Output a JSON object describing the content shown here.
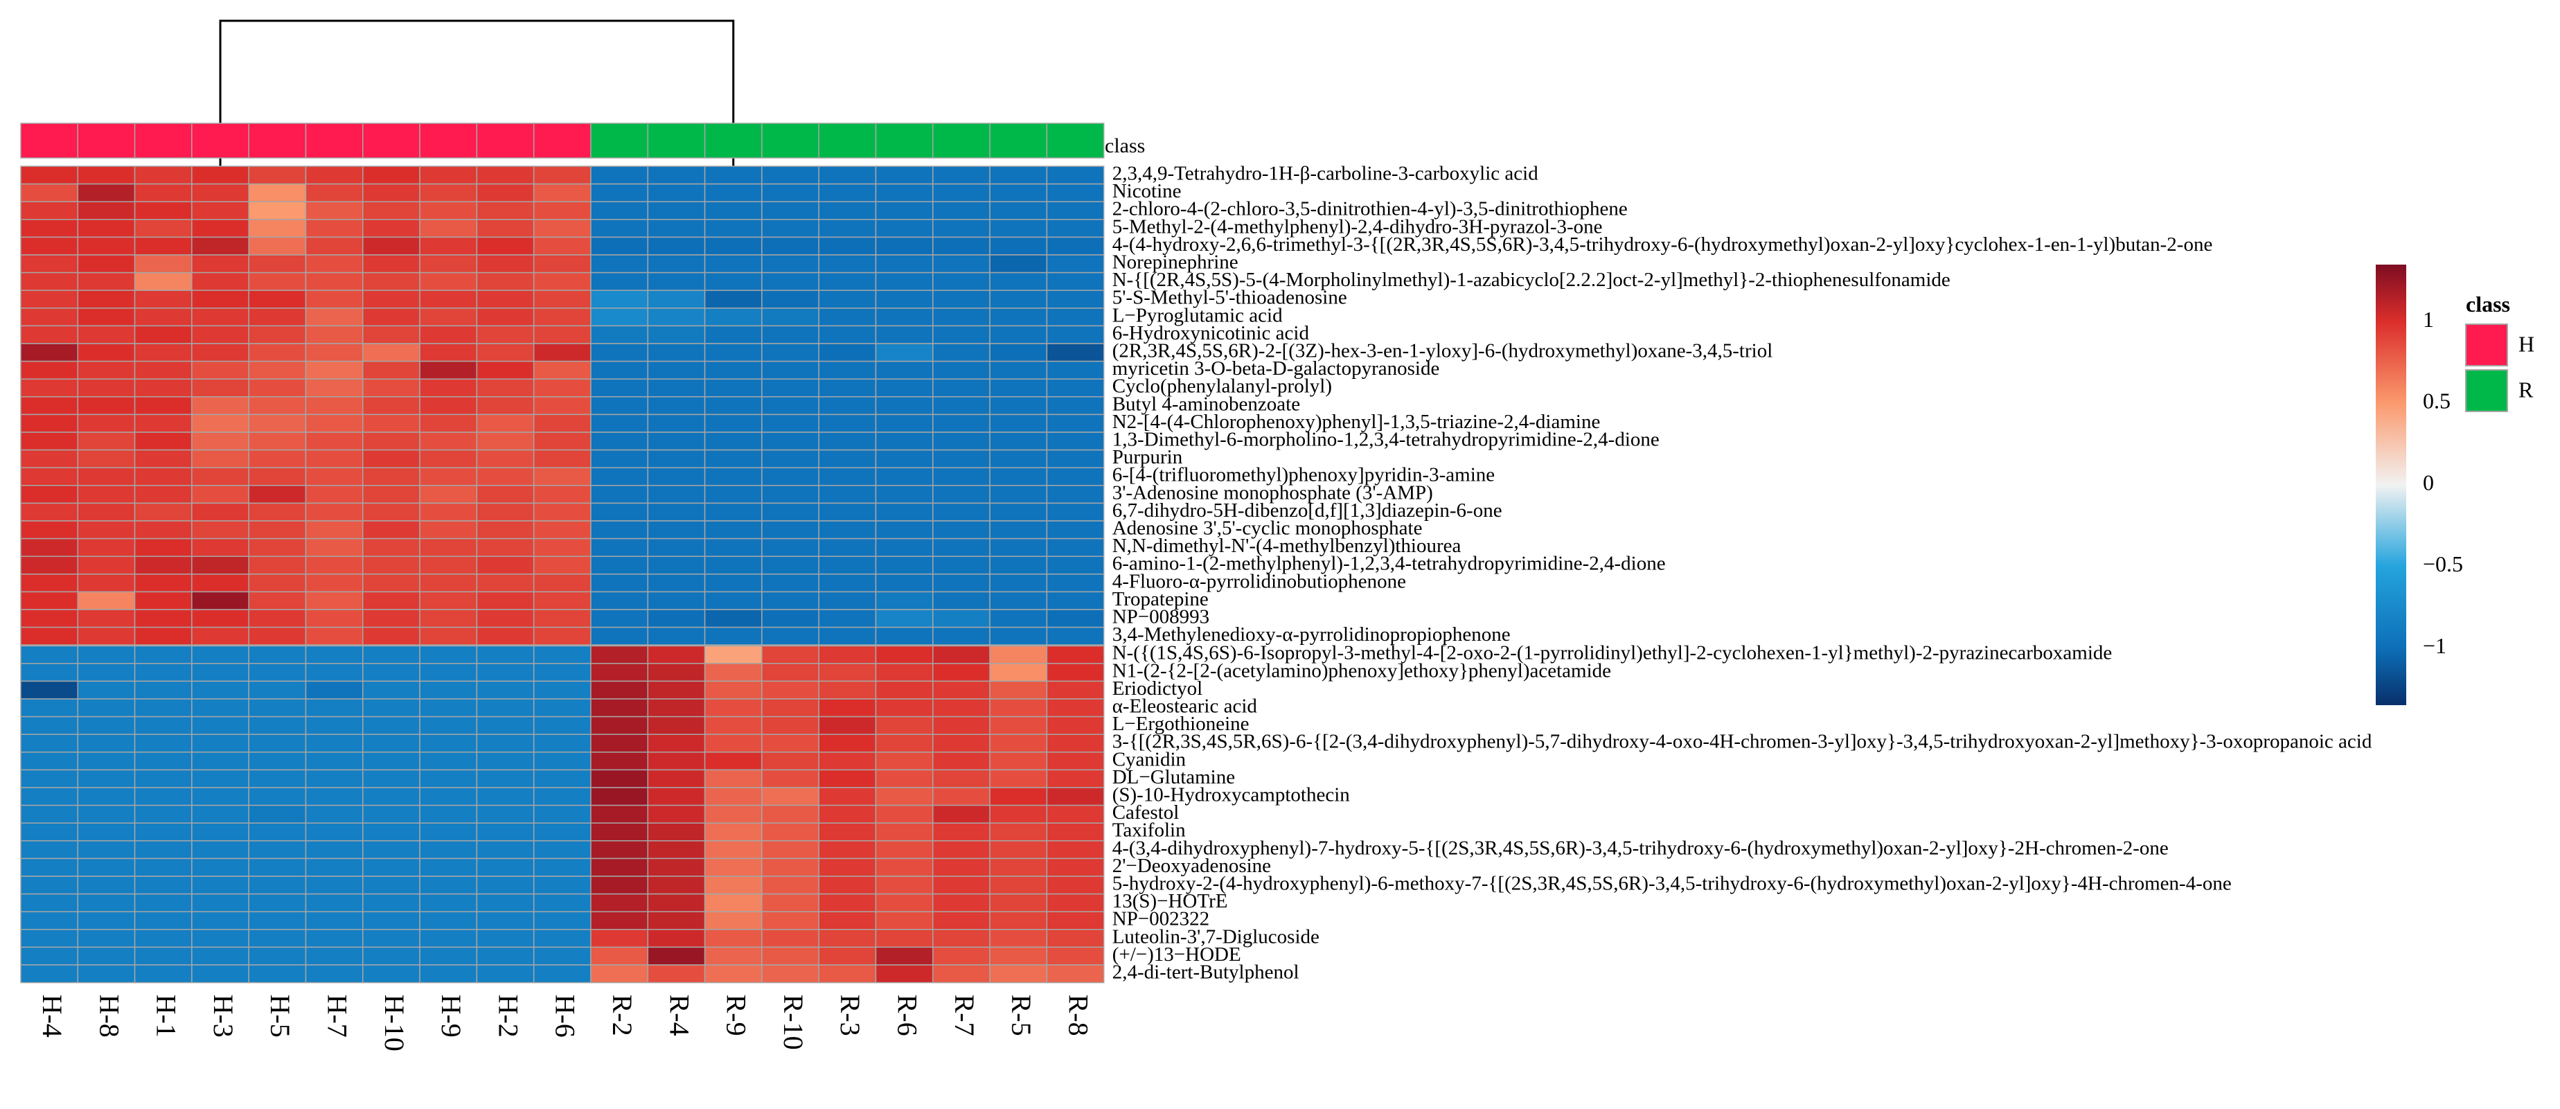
{
  "chart_data": {
    "type": "heatmap",
    "title": "",
    "annotation_label": "class",
    "columns": [
      "H-4",
      "H-8",
      "H-1",
      "H-3",
      "H-5",
      "H-7",
      "H-10",
      "H-9",
      "H-2",
      "H-6",
      "R-2",
      "R-4",
      "R-9",
      "R-10",
      "R-3",
      "R-6",
      "R-7",
      "R-5",
      "R-8"
    ],
    "column_class": [
      "H",
      "H",
      "H",
      "H",
      "H",
      "H",
      "H",
      "H",
      "H",
      "H",
      "R",
      "R",
      "R",
      "R",
      "R",
      "R",
      "R",
      "R",
      "R"
    ],
    "rows": [
      "2,3,4,9-Tetrahydro-1H-β-carboline-3-carboxylic acid",
      "Nicotine",
      "2-chloro-4-(2-chloro-3,5-dinitrothien-4-yl)-3,5-dinitrothiophene",
      "5-Methyl-2-(4-methylphenyl)-2,4-dihydro-3H-pyrazol-3-one",
      "4-(4-hydroxy-2,6,6-trimethyl-3-{[(2R,3R,4S,5S,6R)-3,4,5-trihydroxy-6-(hydroxymethyl)oxan-2-yl]oxy}cyclohex-1-en-1-yl)butan-2-one",
      "Norepinephrine",
      "N-{[(2R,4S,5S)-5-(4-Morpholinylmethyl)-1-azabicyclo[2.2.2]oct-2-yl]methyl}-2-thiophenesulfonamide",
      "5'-S-Methyl-5'-thioadenosine",
      "L−Pyroglutamic acid",
      "6-Hydroxynicotinic acid",
      "(2R,3R,4S,5S,6R)-2-[(3Z)-hex-3-en-1-yloxy]-6-(hydroxymethyl)oxane-3,4,5-triol",
      "myricetin 3-O-beta-D-galactopyranoside",
      "Cyclo(phenylalanyl-prolyl)",
      "Butyl 4-aminobenzoate",
      "N2-[4-(4-Chlorophenoxy)phenyl]-1,3,5-triazine-2,4-diamine",
      "1,3-Dimethyl-6-morpholino-1,2,3,4-tetrahydropyrimidine-2,4-dione",
      "Purpurin",
      "6-[4-(trifluoromethyl)phenoxy]pyridin-3-amine",
      "3'-Adenosine monophosphate (3'-AMP)",
      "6,7-dihydro-5H-dibenzo[d,f][1,3]diazepin-6-one",
      "Adenosine 3',5'-cyclic monophosphate",
      "N,N-dimethyl-N'-(4-methylbenzyl)thiourea",
      "6-amino-1-(2-methylphenyl)-1,2,3,4-tetrahydropyrimidine-2,4-dione",
      "4-Fluoro-α-pyrrolidinobutiophenone",
      "Tropatepine",
      "NP−008993",
      "3,4-Methylenedioxy-α-pyrrolidinopropiophenone",
      "N-({(1S,4S,6S)-6-Isopropyl-3-methyl-4-[2-oxo-2-(1-pyrrolidinyl)ethyl]-2-cyclohexen-1-yl}methyl)-2-pyrazinecarboxamide",
      "N1-(2-{2-[2-(acetylamino)phenoxy]ethoxy}phenyl)acetamide",
      "Eriodictyol",
      "α-Eleostearic acid",
      "L−Ergothioneine",
      "3-{[(2R,3S,4S,5R,6S)-6-{[2-(3,4-dihydroxyphenyl)-5,7-dihydroxy-4-oxo-4H-chromen-3-yl]oxy}-3,4,5-trihydroxyoxan-2-yl]methoxy}-3-oxopropanoic acid",
      "Cyanidin",
      "DL−Glutamine",
      "(S)-10-Hydroxycamptothecin",
      "Cafestol",
      "Taxifolin",
      "4-(3,4-dihydroxyphenyl)-7-hydroxy-5-{[(2S,3R,4S,5S,6R)-3,4,5-trihydroxy-6-(hydroxymethyl)oxan-2-yl]oxy}-2H-chromen-2-one",
      "2'−Deoxyadenosine",
      "5-hydroxy-2-(4-hydroxyphenyl)-6-methoxy-7-{[(2S,3R,4S,5S,6R)-3,4,5-trihydroxy-6-(hydroxymethyl)oxan-2-yl]oxy}-4H-chromen-4-one",
      "13(S)−HOTrE",
      "NP−002322",
      "Luteolin-3',7-Diglucoside",
      "(+/−)13−HODE",
      "2,4-di-tert-Butylphenol"
    ],
    "up_group_row_count": 27,
    "values": [
      [
        1.0,
        1.0,
        0.95,
        1.0,
        0.9,
        0.95,
        1.0,
        0.95,
        0.95,
        0.9,
        -0.95,
        -0.95,
        -0.95,
        -0.95,
        -0.95,
        -0.95,
        -0.95,
        -0.95,
        -0.95
      ],
      [
        0.85,
        1.15,
        0.95,
        0.95,
        0.55,
        0.9,
        0.95,
        0.9,
        0.95,
        0.8,
        -0.95,
        -0.95,
        -0.95,
        -0.95,
        -0.95,
        -0.95,
        -0.95,
        -0.95,
        -0.95
      ],
      [
        0.95,
        1.05,
        1.0,
        0.95,
        0.5,
        0.8,
        0.9,
        0.85,
        0.9,
        0.85,
        -0.95,
        -0.95,
        -0.95,
        -0.95,
        -0.95,
        -0.95,
        -0.95,
        -0.95,
        -0.95
      ],
      [
        1.0,
        1.0,
        0.9,
        1.0,
        0.6,
        0.85,
        0.95,
        0.8,
        0.9,
        0.8,
        -0.95,
        -0.95,
        -0.95,
        -0.95,
        -0.95,
        -0.95,
        -0.95,
        -0.95,
        -0.95
      ],
      [
        1.0,
        1.0,
        1.0,
        1.1,
        0.7,
        0.9,
        1.05,
        0.95,
        1.0,
        0.85,
        -1.0,
        -1.0,
        -1.0,
        -1.0,
        -1.0,
        -1.0,
        -1.0,
        -1.0,
        -1.0
      ],
      [
        0.95,
        1.0,
        0.75,
        0.95,
        0.9,
        0.85,
        0.95,
        0.9,
        0.95,
        0.9,
        -0.95,
        -0.95,
        -0.95,
        -0.95,
        -0.95,
        -0.95,
        -0.95,
        -1.05,
        -0.95
      ],
      [
        0.95,
        0.95,
        0.6,
        0.95,
        0.85,
        0.85,
        0.9,
        0.85,
        0.9,
        0.85,
        -0.95,
        -0.95,
        -0.95,
        -0.95,
        -0.95,
        -0.95,
        -0.95,
        -0.95,
        -0.95
      ],
      [
        0.95,
        1.0,
        0.95,
        1.0,
        1.0,
        0.85,
        0.95,
        0.95,
        0.95,
        0.9,
        -0.75,
        -0.8,
        -1.05,
        -1.0,
        -0.95,
        -0.95,
        -0.95,
        -0.95,
        -0.95
      ],
      [
        0.95,
        1.0,
        0.95,
        0.95,
        0.95,
        0.75,
        0.95,
        0.9,
        0.95,
        0.9,
        -0.75,
        -0.8,
        -0.85,
        -0.9,
        -0.95,
        -0.95,
        -0.95,
        -0.95,
        -0.95
      ],
      [
        0.95,
        0.95,
        1.0,
        0.95,
        0.9,
        0.8,
        0.9,
        0.95,
        0.9,
        0.9,
        -0.9,
        -0.9,
        -0.95,
        -0.95,
        -0.95,
        -0.95,
        -0.95,
        -0.95,
        -0.95
      ],
      [
        1.2,
        1.0,
        0.95,
        0.95,
        0.85,
        0.8,
        0.7,
        0.95,
        0.9,
        1.05,
        -0.95,
        -0.95,
        -0.95,
        -0.95,
        -1.0,
        -0.8,
        -0.95,
        -1.0,
        -1.15
      ],
      [
        1.0,
        0.95,
        0.95,
        0.85,
        0.8,
        0.7,
        0.9,
        1.15,
        1.0,
        0.8,
        -0.95,
        -0.95,
        -0.95,
        -0.95,
        -0.95,
        -0.95,
        -0.95,
        -0.95,
        -0.95
      ],
      [
        0.95,
        0.95,
        0.95,
        0.9,
        0.85,
        0.75,
        0.85,
        0.95,
        0.9,
        0.85,
        -0.95,
        -0.95,
        -0.95,
        -0.95,
        -0.95,
        -0.95,
        -0.95,
        -0.95,
        -0.95
      ],
      [
        1.0,
        1.0,
        1.0,
        0.75,
        0.8,
        0.8,
        0.9,
        0.95,
        0.9,
        0.85,
        -0.95,
        -0.95,
        -0.95,
        -0.95,
        -0.95,
        -0.95,
        -0.95,
        -0.95,
        -0.95
      ],
      [
        1.0,
        0.95,
        0.95,
        0.7,
        0.75,
        0.8,
        0.85,
        0.9,
        0.8,
        0.9,
        -0.95,
        -0.95,
        -0.95,
        -0.95,
        -0.95,
        -0.95,
        -0.95,
        -0.95,
        -0.95
      ],
      [
        1.0,
        0.9,
        1.0,
        0.75,
        0.8,
        0.85,
        0.9,
        0.85,
        0.8,
        0.9,
        -0.95,
        -0.95,
        -0.95,
        -0.95,
        -0.95,
        -0.95,
        -0.95,
        -0.95,
        -0.95
      ],
      [
        0.95,
        0.9,
        0.95,
        0.8,
        0.85,
        0.85,
        0.95,
        0.9,
        0.85,
        0.9,
        -0.95,
        -0.95,
        -0.95,
        -0.95,
        -0.95,
        -0.95,
        -0.95,
        -0.95,
        -0.95
      ],
      [
        0.95,
        0.95,
        0.95,
        0.9,
        0.9,
        0.85,
        0.9,
        0.85,
        0.85,
        0.8,
        -0.95,
        -0.95,
        -0.95,
        -0.95,
        -0.95,
        -0.95,
        -0.95,
        -0.95,
        -0.95
      ],
      [
        1.0,
        0.95,
        0.95,
        0.85,
        1.05,
        0.85,
        0.9,
        0.8,
        0.9,
        0.85,
        -0.95,
        -0.95,
        -0.95,
        -0.95,
        -0.95,
        -0.95,
        -0.95,
        -0.95,
        -0.95
      ],
      [
        0.95,
        0.95,
        0.9,
        0.95,
        0.9,
        0.85,
        0.9,
        0.85,
        0.9,
        0.85,
        -0.95,
        -0.95,
        -0.95,
        -0.95,
        -0.95,
        -0.95,
        -0.95,
        -0.95,
        -0.95
      ],
      [
        1.0,
        0.95,
        0.95,
        0.9,
        0.9,
        0.8,
        0.95,
        0.85,
        0.9,
        0.85,
        -0.95,
        -0.95,
        -0.95,
        -0.95,
        -0.95,
        -0.95,
        -0.95,
        -0.95,
        -0.95
      ],
      [
        1.05,
        0.95,
        1.0,
        0.95,
        0.9,
        0.8,
        0.9,
        0.9,
        0.9,
        0.85,
        -0.95,
        -0.95,
        -0.95,
        -0.95,
        -0.95,
        -0.95,
        -0.95,
        -0.95,
        -0.95
      ],
      [
        1.05,
        0.95,
        1.05,
        1.1,
        0.9,
        0.85,
        0.9,
        0.9,
        0.95,
        0.85,
        -0.95,
        -0.95,
        -0.95,
        -0.95,
        -0.95,
        -0.95,
        -0.95,
        -0.95,
        -0.95
      ],
      [
        1.0,
        0.95,
        1.0,
        1.0,
        0.9,
        0.85,
        0.9,
        0.9,
        0.9,
        0.9,
        -0.95,
        -0.95,
        -0.95,
        -0.95,
        -0.95,
        -0.95,
        -0.95,
        -0.95,
        -0.95
      ],
      [
        1.0,
        0.6,
        1.0,
        1.25,
        0.9,
        0.8,
        0.95,
        0.9,
        0.95,
        0.9,
        -0.95,
        -0.95,
        -0.95,
        -0.95,
        -0.95,
        -0.9,
        -0.95,
        -0.95,
        -0.95
      ],
      [
        1.0,
        0.95,
        1.0,
        1.0,
        0.95,
        0.85,
        0.95,
        0.9,
        0.95,
        0.9,
        -0.95,
        -1.0,
        -1.05,
        -1.0,
        -0.95,
        -0.8,
        -0.85,
        -0.95,
        -1.0
      ],
      [
        1.0,
        0.95,
        1.0,
        0.95,
        0.95,
        0.85,
        0.95,
        0.9,
        0.95,
        0.9,
        -0.95,
        -0.95,
        -0.95,
        -0.95,
        -0.95,
        -0.95,
        -0.95,
        -0.95,
        -0.95
      ],
      [
        -0.85,
        -0.85,
        -0.85,
        -0.85,
        -0.85,
        -0.85,
        -0.85,
        -0.85,
        -0.85,
        -0.85,
        1.15,
        1.05,
        0.45,
        0.9,
        0.95,
        1.0,
        1.05,
        0.6,
        1.0
      ],
      [
        -0.85,
        -0.85,
        -0.85,
        -0.85,
        -0.85,
        -0.85,
        -0.85,
        -0.85,
        -0.85,
        -0.85,
        1.15,
        1.1,
        0.75,
        0.9,
        0.9,
        0.95,
        1.0,
        0.55,
        1.0
      ],
      [
        -1.2,
        -0.85,
        -0.85,
        -0.85,
        -0.85,
        -0.95,
        -0.85,
        -0.85,
        -0.85,
        -0.85,
        1.2,
        1.1,
        0.8,
        0.85,
        0.9,
        0.95,
        0.95,
        0.8,
        0.95
      ],
      [
        -0.85,
        -0.85,
        -0.85,
        -0.85,
        -0.85,
        -0.85,
        -0.85,
        -0.85,
        -0.85,
        -0.85,
        1.2,
        1.1,
        0.85,
        0.9,
        1.0,
        0.95,
        0.95,
        0.85,
        0.95
      ],
      [
        -0.85,
        -0.85,
        -0.85,
        -0.85,
        -0.85,
        -0.85,
        -0.85,
        -0.85,
        -0.85,
        -0.85,
        1.2,
        1.1,
        0.85,
        0.9,
        1.05,
        0.9,
        0.95,
        0.85,
        0.95
      ],
      [
        -0.85,
        -0.85,
        -0.85,
        -0.85,
        -0.85,
        -0.85,
        -0.85,
        -0.85,
        -0.85,
        -0.85,
        1.2,
        1.05,
        0.85,
        0.85,
        1.0,
        0.9,
        0.95,
        0.85,
        0.95
      ],
      [
        -0.85,
        -0.85,
        -0.85,
        -0.85,
        -0.85,
        -0.85,
        -0.85,
        -0.85,
        -0.85,
        -0.85,
        1.2,
        1.05,
        1.0,
        0.9,
        0.95,
        0.85,
        0.95,
        0.85,
        0.95
      ],
      [
        -0.85,
        -0.85,
        -0.85,
        -0.85,
        -0.85,
        -0.85,
        -0.85,
        -0.85,
        -0.85,
        -0.85,
        1.25,
        1.05,
        0.75,
        0.85,
        1.0,
        0.85,
        0.9,
        0.85,
        0.95
      ],
      [
        -0.85,
        -0.85,
        -0.85,
        -0.85,
        -0.85,
        -0.85,
        -0.85,
        -0.85,
        -0.85,
        -0.85,
        1.25,
        1.05,
        0.75,
        0.7,
        0.95,
        0.8,
        0.85,
        1.0,
        1.05
      ],
      [
        -0.85,
        -0.85,
        -0.85,
        -0.85,
        -0.9,
        -0.85,
        -0.85,
        -0.85,
        -0.85,
        -0.85,
        1.2,
        1.05,
        0.75,
        0.8,
        0.95,
        0.85,
        1.05,
        0.95,
        0.95
      ],
      [
        -0.85,
        -0.85,
        -0.85,
        -0.85,
        -0.85,
        -0.85,
        -0.85,
        -0.85,
        -0.85,
        -0.85,
        1.2,
        1.1,
        0.7,
        0.8,
        0.95,
        0.85,
        0.95,
        0.9,
        0.95
      ],
      [
        -0.85,
        -0.85,
        -0.85,
        -0.85,
        -0.85,
        -0.85,
        -0.85,
        -0.85,
        -0.85,
        -0.85,
        1.2,
        1.1,
        0.7,
        0.8,
        0.95,
        0.85,
        0.95,
        0.9,
        0.95
      ],
      [
        -0.85,
        -0.85,
        -0.85,
        -0.85,
        -0.85,
        -0.85,
        -0.85,
        -0.85,
        -0.85,
        -0.85,
        1.2,
        1.1,
        0.7,
        0.8,
        0.95,
        0.85,
        0.95,
        0.9,
        0.95
      ],
      [
        -0.85,
        -0.85,
        -0.85,
        -0.85,
        -0.85,
        -0.85,
        -0.85,
        -0.85,
        -0.85,
        -0.85,
        1.2,
        1.1,
        0.65,
        0.8,
        0.95,
        0.85,
        0.95,
        0.9,
        0.95
      ],
      [
        -0.85,
        -0.85,
        -0.85,
        -0.85,
        -0.85,
        -0.85,
        -0.85,
        -0.85,
        -0.85,
        -0.85,
        1.15,
        1.1,
        0.6,
        0.8,
        0.95,
        0.85,
        0.95,
        0.9,
        0.95
      ],
      [
        -0.85,
        -0.85,
        -0.85,
        -0.85,
        -0.85,
        -0.85,
        -0.85,
        -0.85,
        -0.85,
        -0.85,
        1.15,
        1.1,
        0.65,
        0.8,
        0.95,
        0.85,
        0.95,
        0.9,
        0.95
      ],
      [
        -0.85,
        -0.85,
        -0.85,
        -0.85,
        -0.85,
        -0.85,
        -0.85,
        -0.85,
        -0.85,
        -0.85,
        0.95,
        1.05,
        0.8,
        0.85,
        0.9,
        0.9,
        0.9,
        0.85,
        0.9
      ],
      [
        -0.85,
        -0.85,
        -0.85,
        -0.85,
        -0.85,
        -0.85,
        -0.85,
        -0.85,
        -0.85,
        -0.85,
        0.8,
        1.25,
        0.75,
        0.8,
        0.9,
        1.15,
        0.85,
        0.8,
        0.85
      ],
      [
        -0.85,
        -0.85,
        -0.85,
        -0.85,
        -0.85,
        -0.85,
        -0.85,
        -0.85,
        -0.85,
        -0.85,
        0.7,
        0.85,
        0.7,
        0.75,
        0.8,
        1.05,
        0.8,
        0.7,
        0.75
      ]
    ],
    "color_scale": {
      "ticks": [
        1,
        0.5,
        0,
        -0.5,
        -1
      ],
      "tick_labels": [
        "1",
        "0.5",
        "0",
        "−0.5",
        "−1"
      ],
      "range": [
        -1.35,
        1.35
      ],
      "stops": [
        {
          "value": -1.35,
          "color": "#08306b"
        },
        {
          "value": -1.0,
          "color": "#0d6fb8"
        },
        {
          "value": -0.5,
          "color": "#25a4dd"
        },
        {
          "value": 0,
          "color": "#f2f2f2"
        },
        {
          "value": 0.5,
          "color": "#fb9a6e"
        },
        {
          "value": 1.0,
          "color": "#db2e2b"
        },
        {
          "value": 1.35,
          "color": "#7e0d22"
        }
      ]
    },
    "legend": {
      "title": "class",
      "items": [
        {
          "label": "H",
          "color": "#ff1a4f"
        },
        {
          "label": "R",
          "color": "#00b849"
        }
      ]
    },
    "column_dendrogram": "top split between H group and R group",
    "grid_color": "#a6a6a6"
  }
}
